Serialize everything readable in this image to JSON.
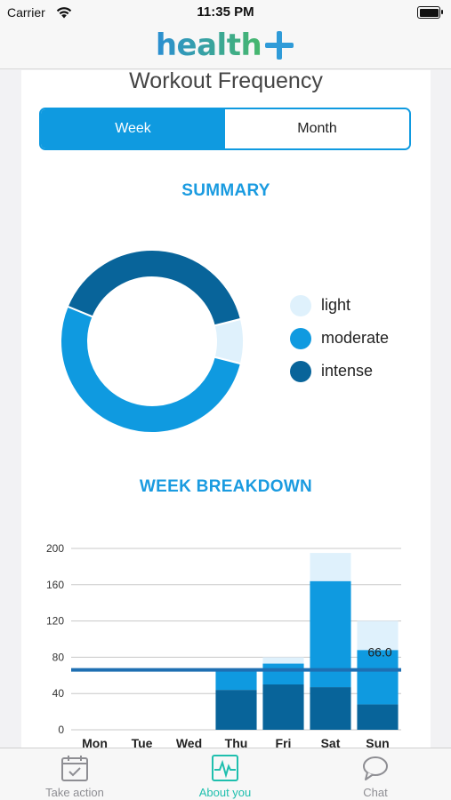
{
  "status_bar": {
    "carrier": "Carrier",
    "time": "11:35 PM"
  },
  "nav": {
    "logo_text": "health",
    "logo_symbol": "plus-icon"
  },
  "page": {
    "title": "Workout Frequency"
  },
  "period_selector": {
    "options": [
      "Week",
      "Month"
    ],
    "selected": "Week"
  },
  "summary": {
    "heading": "SUMMARY"
  },
  "week_breakdown": {
    "heading": "WEEK BREAKDOWN"
  },
  "colors": {
    "light": "#dff1fc",
    "moderate": "#0f9ae0",
    "intense": "#08649a",
    "accent": "#1a9be0",
    "average_line": "#1e6fb2",
    "tab_active": "#1fbfae",
    "tab_inactive": "#8e8e93"
  },
  "chart_data": [
    {
      "type": "pie",
      "style": "donut",
      "categories": [
        "light",
        "moderate",
        "intense"
      ],
      "values": [
        53,
        352,
        268
      ],
      "legend": "right"
    },
    {
      "type": "bar",
      "stacked": true,
      "categories": [
        "Mon",
        "Tue",
        "Wed",
        "Thu",
        "Fri",
        "Sat",
        "Sun"
      ],
      "series": [
        {
          "name": "intense",
          "values": [
            0,
            0,
            0,
            44,
            50,
            47,
            28
          ]
        },
        {
          "name": "moderate",
          "values": [
            0,
            0,
            0,
            22,
            23,
            117,
            60
          ]
        },
        {
          "name": "light",
          "values": [
            0,
            0,
            0,
            0,
            7,
            31,
            32
          ]
        }
      ],
      "yticks": [
        0,
        40,
        80,
        120,
        160,
        200
      ],
      "ylim": [
        0,
        200
      ],
      "grid": true,
      "reference_line": {
        "value": 66.0,
        "label": "66.0"
      }
    }
  ],
  "tab_bar": {
    "items": [
      {
        "label": "Take action",
        "icon": "calendar-check-icon",
        "active": false
      },
      {
        "label": "About you",
        "icon": "heart-rate-icon",
        "active": true
      },
      {
        "label": "Chat",
        "icon": "chat-bubble-icon",
        "active": false
      }
    ]
  }
}
